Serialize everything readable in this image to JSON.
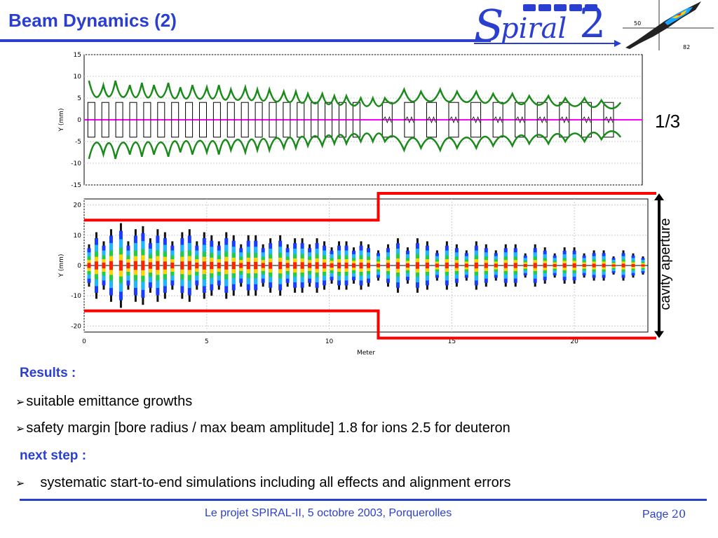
{
  "slide": {
    "title": "Beam Dynamics (2)",
    "logo": {
      "brand_s": "S",
      "brand_mid": "piral",
      "brand_2": "2"
    },
    "thumbnail_labels": [
      "50",
      "82"
    ],
    "ratio_label": "1/3",
    "cavity_label": "cavity aperture",
    "results_heading": "Results :",
    "bullets": [
      "suitable emittance growths",
      "safety margin [bore radius / max beam amplitude] 1.8 for ions 2.5 for deuteron"
    ],
    "next_heading": "next step :",
    "next_bullets": [
      "systematic start-to-end simulations including all effects and alignment errors"
    ],
    "bullet_glyph": "➢",
    "footer": {
      "text": "Le projet SPIRAL-II, 5 octobre 2003, Porquerolles",
      "page_label": "Page",
      "page_number": "20"
    },
    "colors": {
      "accent": "#2a3fd0",
      "envelope": "#1a8a1a",
      "axis_line": "#ff00ff",
      "aperture": "#ff0000"
    }
  },
  "chart_data": [
    {
      "type": "line",
      "title": "",
      "xlabel": "",
      "ylabel": "Y (mm)",
      "ylim": [
        -15,
        15
      ],
      "y_ticks": [
        "15",
        "10",
        "5",
        "0",
        "-5",
        "-10",
        "-15"
      ],
      "grid": true,
      "series": [
        {
          "x": [
            0.2,
            0.8,
            1.3,
            1.9,
            2.4,
            2.9,
            3.5,
            4.0,
            4.5,
            5.1,
            5.6,
            6.1,
            6.7,
            7.2,
            7.7,
            8.3,
            8.8,
            9.3,
            9.9,
            10.4,
            10.9,
            11.5,
            12.0,
            12.5,
            13.3,
            14.0,
            14.8,
            15.5,
            16.3,
            17.0,
            17.8,
            18.5,
            19.3,
            20.0,
            20.8,
            21.5,
            22.3
          ],
          "values": [
            9,
            8,
            9,
            8,
            8.5,
            8,
            8.5,
            7.5,
            8,
            7.5,
            8,
            7,
            7.5,
            7,
            7,
            6.5,
            6.5,
            6,
            6,
            5.5,
            5.5,
            5,
            5,
            5,
            7,
            6.5,
            7,
            6.5,
            6.5,
            6,
            6,
            5.5,
            5.5,
            5,
            5,
            4.5,
            4
          ]
        },
        {
          "x": [
            0.2,
            0.8,
            1.3,
            1.9,
            2.4,
            2.9,
            3.5,
            4.0,
            4.5,
            5.1,
            5.6,
            6.1,
            6.7,
            7.2,
            7.7,
            8.3,
            8.8,
            9.3,
            9.9,
            10.4,
            10.9,
            11.5,
            12.0,
            12.5,
            13.3,
            14.0,
            14.8,
            15.5,
            16.3,
            17.0,
            17.8,
            18.5,
            19.3,
            20.0,
            20.8,
            21.5,
            22.3
          ],
          "values": [
            -9,
            -8,
            -9,
            -8,
            -8.5,
            -8,
            -8.5,
            -7.5,
            -8,
            -7.5,
            -8,
            -7,
            -7.5,
            -7,
            -7,
            -6.5,
            -6.5,
            -6,
            -6,
            -5.5,
            -5.5,
            -5,
            -5,
            -5,
            -7,
            -6.5,
            -7,
            -6.5,
            -6.5,
            -6,
            -6,
            -5.5,
            -5.5,
            -5,
            -5,
            -4.5,
            -4
          ]
        }
      ]
    },
    {
      "type": "scatter",
      "title": "",
      "xlabel": "Meter",
      "ylabel": "Y (mm)",
      "xlim": [
        0,
        23
      ],
      "ylim": [
        -22,
        22
      ],
      "x_ticks": [
        "0",
        "5",
        "10",
        "15",
        "20"
      ],
      "y_ticks": [
        "20",
        "10",
        "0",
        "-10",
        "-20"
      ],
      "grid": true,
      "aperture": {
        "x": [
          0,
          12,
          12,
          23
        ],
        "upper": [
          15,
          15,
          24,
          24
        ],
        "lower": [
          -15,
          -15,
          -24,
          -24
        ]
      },
      "bunches": {
        "x": [
          0.2,
          0.5,
          0.8,
          1.1,
          1.5,
          1.8,
          2.1,
          2.4,
          2.7,
          3.0,
          3.3,
          3.6,
          4.0,
          4.3,
          4.6,
          4.9,
          5.2,
          5.5,
          5.8,
          6.1,
          6.4,
          6.7,
          7.0,
          7.3,
          7.6,
          8.0,
          8.3,
          8.6,
          8.9,
          9.2,
          9.5,
          9.8,
          10.1,
          10.4,
          10.7,
          11.0,
          11.3,
          11.6,
          12.0,
          12.4,
          12.8,
          13.2,
          13.6,
          14.0,
          14.4,
          14.8,
          15.2,
          15.6,
          16.0,
          16.4,
          16.8,
          17.2,
          17.6,
          18.0,
          18.4,
          18.8,
          19.2,
          19.6,
          20.0,
          20.4,
          20.8,
          21.2,
          21.6,
          22.0,
          22.4,
          22.8
        ],
        "amplitude": [
          7,
          11,
          8,
          12,
          14,
          8,
          12,
          13,
          9,
          12,
          11,
          8,
          11,
          12,
          8,
          11,
          10,
          8,
          11,
          10,
          7,
          10,
          10,
          7,
          9,
          10,
          7,
          9,
          9,
          7,
          9,
          8,
          6,
          8,
          8,
          6,
          8,
          7,
          5,
          7,
          9,
          6,
          9,
          8,
          5,
          8,
          7,
          5,
          8,
          7,
          5,
          7,
          7,
          4,
          7,
          6,
          4,
          6,
          6,
          4,
          5,
          5,
          3,
          5,
          4,
          3
        ]
      }
    }
  ]
}
